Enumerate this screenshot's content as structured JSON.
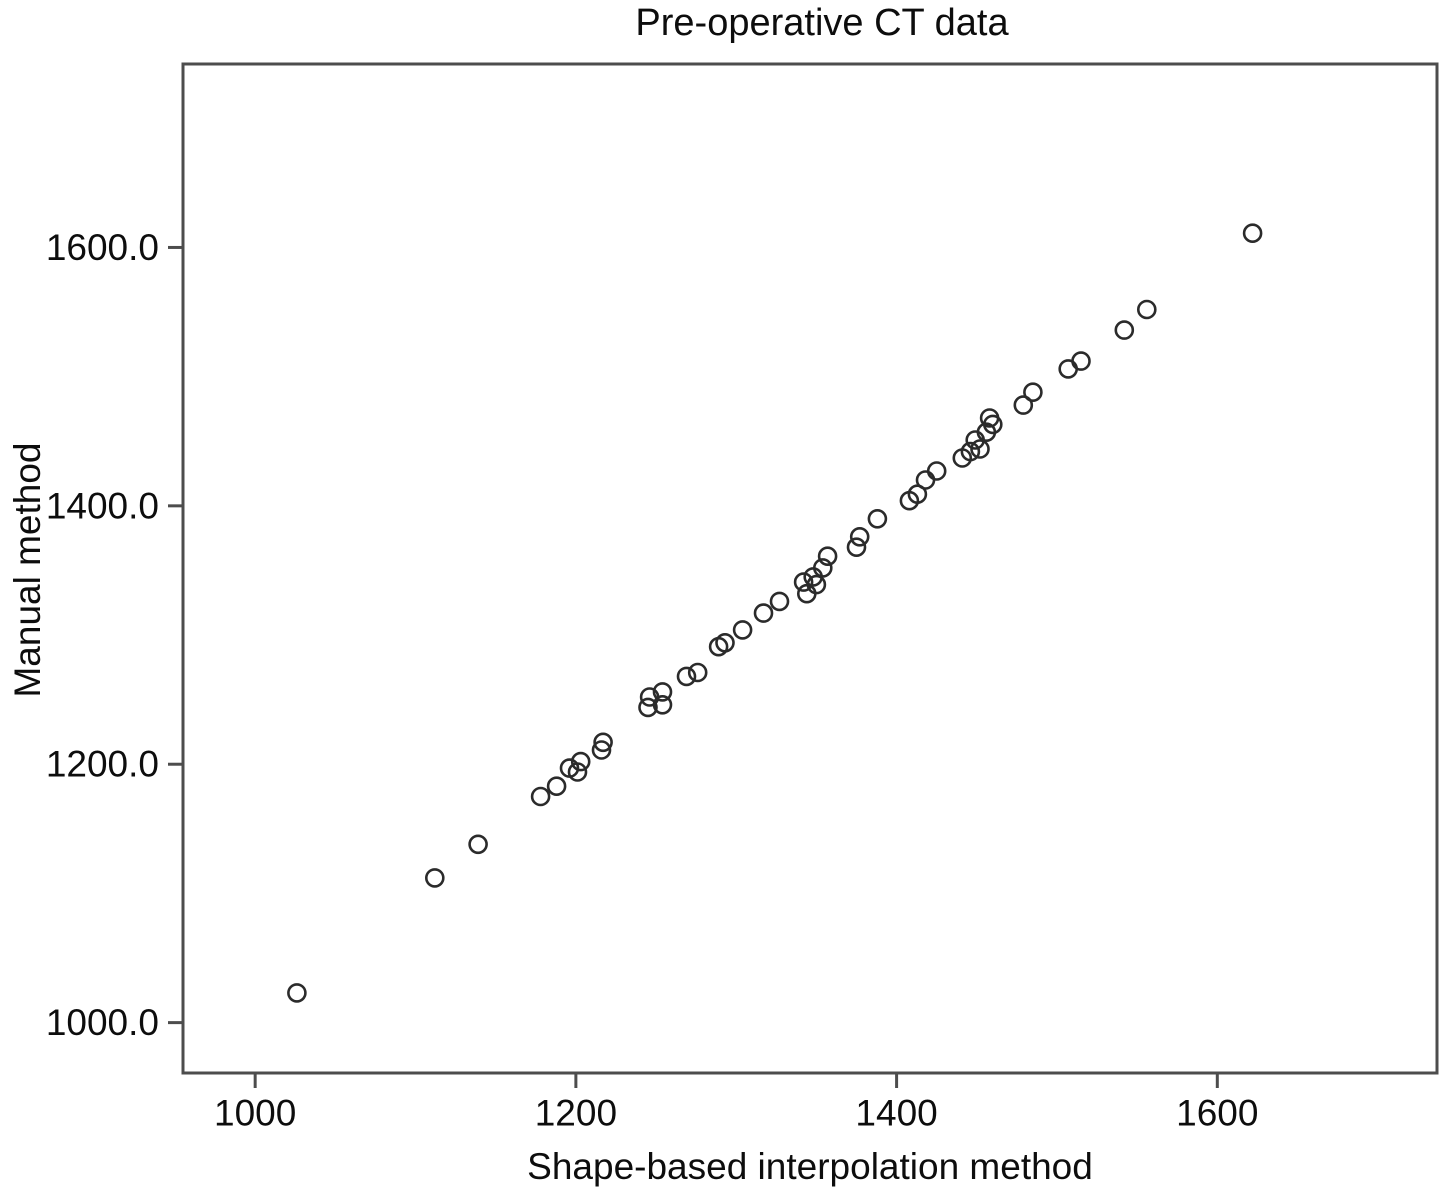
{
  "chart_data": {
    "type": "scatter",
    "title": "Pre-operative CT data",
    "xlabel": "Shape-based interpolation method",
    "ylabel": "Manual method",
    "xlim": [
      955,
      1737
    ],
    "ylim": [
      961,
      1742
    ],
    "grid": false,
    "legend": null,
    "x_ticks": [
      {
        "value": 1000,
        "label": "1000"
      },
      {
        "value": 1200,
        "label": "1200"
      },
      {
        "value": 1400,
        "label": "1400"
      },
      {
        "value": 1600,
        "label": "1600"
      }
    ],
    "y_ticks": [
      {
        "value": 1000,
        "label": "1000.0"
      },
      {
        "value": 1200,
        "label": "1200.0"
      },
      {
        "value": 1400,
        "label": "1400.0"
      },
      {
        "value": 1600,
        "label": "1600.0"
      }
    ],
    "marker": {
      "shape": "open-circle",
      "radius": 8.5,
      "stroke_width": 2.6,
      "color": "#2b2b2b"
    },
    "frame_color": "#4d4d4d",
    "points": [
      [
        1026,
        1023
      ],
      [
        1112,
        1112
      ],
      [
        1139,
        1138
      ],
      [
        1178,
        1175
      ],
      [
        1188,
        1183
      ],
      [
        1196,
        1197
      ],
      [
        1201,
        1194
      ],
      [
        1203,
        1202
      ],
      [
        1216,
        1211
      ],
      [
        1217,
        1217
      ],
      [
        1245,
        1244
      ],
      [
        1246,
        1252
      ],
      [
        1254,
        1246
      ],
      [
        1254,
        1256
      ],
      [
        1269,
        1268
      ],
      [
        1276,
        1271
      ],
      [
        1289,
        1291
      ],
      [
        1293,
        1294
      ],
      [
        1304,
        1304
      ],
      [
        1317,
        1317
      ],
      [
        1327,
        1326
      ],
      [
        1342,
        1341
      ],
      [
        1344,
        1332
      ],
      [
        1348,
        1345
      ],
      [
        1350,
        1339
      ],
      [
        1354,
        1352
      ],
      [
        1357,
        1361
      ],
      [
        1375,
        1368
      ],
      [
        1377,
        1376
      ],
      [
        1388,
        1390
      ],
      [
        1408,
        1404
      ],
      [
        1413,
        1409
      ],
      [
        1418,
        1420
      ],
      [
        1425,
        1427
      ],
      [
        1441,
        1437
      ],
      [
        1446,
        1442
      ],
      [
        1449,
        1451
      ],
      [
        1452,
        1444
      ],
      [
        1456,
        1457
      ],
      [
        1458,
        1468
      ],
      [
        1460,
        1463
      ],
      [
        1479,
        1478
      ],
      [
        1485,
        1488
      ],
      [
        1507,
        1506
      ],
      [
        1515,
        1512
      ],
      [
        1542,
        1536
      ],
      [
        1556,
        1552
      ],
      [
        1622,
        1611
      ]
    ]
  }
}
